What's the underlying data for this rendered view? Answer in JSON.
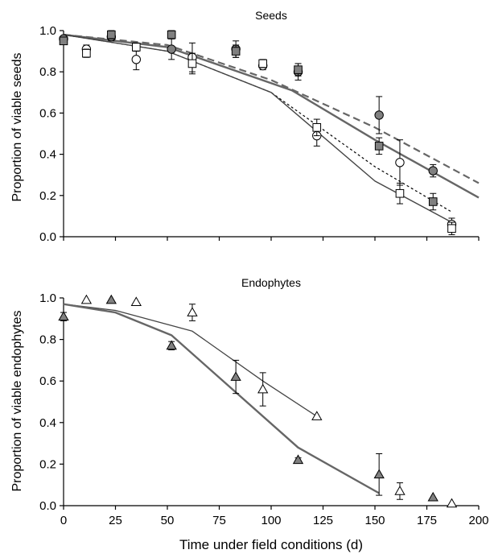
{
  "chart_data": [
    {
      "type": "scatter",
      "title": "Seeds",
      "xlabel": "",
      "ylabel": "Proportion of viable seeds",
      "xlim": [
        0,
        200
      ],
      "ylim": [
        0,
        1
      ],
      "yticks": [
        "0.0",
        "0.2",
        "0.4",
        "0.6",
        "0.8",
        "1.0"
      ],
      "grid": false,
      "series": [
        {
          "marker": "circle-filled",
          "color": "#808080",
          "points": [
            [
              0,
              0.96,
              0
            ],
            [
              23,
              0.97,
              0.02
            ],
            [
              52,
              0.91,
              0.05
            ],
            [
              83,
              0.91,
              0.04
            ],
            [
              113,
              0.8,
              0.04
            ],
            [
              152,
              0.59,
              0.09
            ],
            [
              178,
              0.32,
              0.03
            ]
          ]
        },
        {
          "marker": "square-filled",
          "color": "#808080",
          "points": [
            [
              0,
              0.95,
              0
            ],
            [
              23,
              0.98,
              0.02
            ],
            [
              52,
              0.98,
              0.02
            ],
            [
              83,
              0.9,
              0.03
            ],
            [
              113,
              0.81,
              0.03
            ],
            [
              152,
              0.44,
              0.04
            ],
            [
              178,
              0.17,
              0.04
            ]
          ]
        },
        {
          "marker": "circle-open",
          "color": "#ffffff",
          "points": [
            [
              11,
              0.91,
              0.02
            ],
            [
              35,
              0.86,
              0.05
            ],
            [
              62,
              0.87,
              0.07
            ],
            [
              96,
              0.83,
              0.02
            ],
            [
              122,
              0.49,
              0.05
            ],
            [
              162,
              0.36,
              0.11
            ],
            [
              187,
              0.06,
              0.03
            ]
          ]
        },
        {
          "marker": "square-open",
          "color": "#ffffff",
          "points": [
            [
              11,
              0.89,
              0.02
            ],
            [
              35,
              0.92,
              0.02
            ],
            [
              62,
              0.84,
              0.05
            ],
            [
              96,
              0.84,
              0.02
            ],
            [
              122,
              0.53,
              0.04
            ],
            [
              162,
              0.21,
              0.05
            ],
            [
              187,
              0.04,
              0.03
            ]
          ]
        }
      ],
      "curves": [
        {
          "style": "dashed",
          "color": "#666666",
          "width": 2.2,
          "points": [
            [
              0,
              0.98
            ],
            [
              50,
              0.93
            ],
            [
              100,
              0.76
            ],
            [
              150,
              0.53
            ],
            [
              200,
              0.26
            ]
          ]
        },
        {
          "style": "solid",
          "color": "#666666",
          "width": 2.4,
          "points": [
            [
              0,
              0.98
            ],
            [
              50,
              0.92
            ],
            [
              110,
              0.71
            ],
            [
              150,
              0.47
            ],
            [
              200,
              0.19
            ]
          ]
        },
        {
          "style": "dotted",
          "color": "#000000",
          "width": 1.2,
          "points": [
            [
              0,
              0.98
            ],
            [
              50,
              0.9
            ],
            [
              100,
              0.7
            ],
            [
              150,
              0.34
            ],
            [
              187,
              0.12
            ]
          ]
        },
        {
          "style": "solid",
          "color": "#444444",
          "width": 1.4,
          "points": [
            [
              0,
              0.98
            ],
            [
              50,
              0.9
            ],
            [
              100,
              0.7
            ],
            [
              150,
              0.27
            ],
            [
              187,
              0.07
            ]
          ]
        }
      ]
    },
    {
      "type": "scatter",
      "title": "Endophytes",
      "xlabel": "Time under field conditions (d)",
      "ylabel": "Proportion of viable endophytes",
      "xlim": [
        0,
        200
      ],
      "ylim": [
        0,
        1
      ],
      "xticks": [
        "0",
        "25",
        "50",
        "75",
        "100",
        "125",
        "150",
        "175",
        "200"
      ],
      "yticks": [
        "0.0",
        "0.2",
        "0.4",
        "0.6",
        "0.8",
        "1.0"
      ],
      "grid": false,
      "series": [
        {
          "marker": "triangle-filled",
          "color": "#808080",
          "points": [
            [
              0,
              0.91,
              0.02
            ],
            [
              23,
              0.99,
              0
            ],
            [
              52,
              0.77,
              0.02
            ],
            [
              83,
              0.62,
              0.08
            ],
            [
              113,
              0.22,
              0.01
            ],
            [
              152,
              0.15,
              0.1
            ],
            [
              178,
              0.04,
              0
            ]
          ]
        },
        {
          "marker": "triangle-open",
          "color": "#ffffff",
          "points": [
            [
              11,
              0.99,
              0
            ],
            [
              35,
              0.98,
              0
            ],
            [
              62,
              0.93,
              0.04
            ],
            [
              96,
              0.56,
              0.08
            ],
            [
              122,
              0.43,
              0
            ],
            [
              162,
              0.07,
              0.04
            ],
            [
              187,
              0.01,
              0
            ]
          ]
        }
      ],
      "curves": [
        {
          "style": "solid",
          "color": "#444444",
          "width": 1.3,
          "points": [
            [
              0,
              0.97
            ],
            [
              25,
              0.94
            ],
            [
              62,
              0.84
            ],
            [
              96,
              0.6
            ],
            [
              122,
              0.43
            ]
          ]
        },
        {
          "style": "solid",
          "color": "#666666",
          "width": 2.4,
          "points": [
            [
              0,
              0.97
            ],
            [
              25,
              0.93
            ],
            [
              52,
              0.82
            ],
            [
              113,
              0.28
            ],
            [
              152,
              0.06
            ]
          ]
        }
      ]
    }
  ]
}
